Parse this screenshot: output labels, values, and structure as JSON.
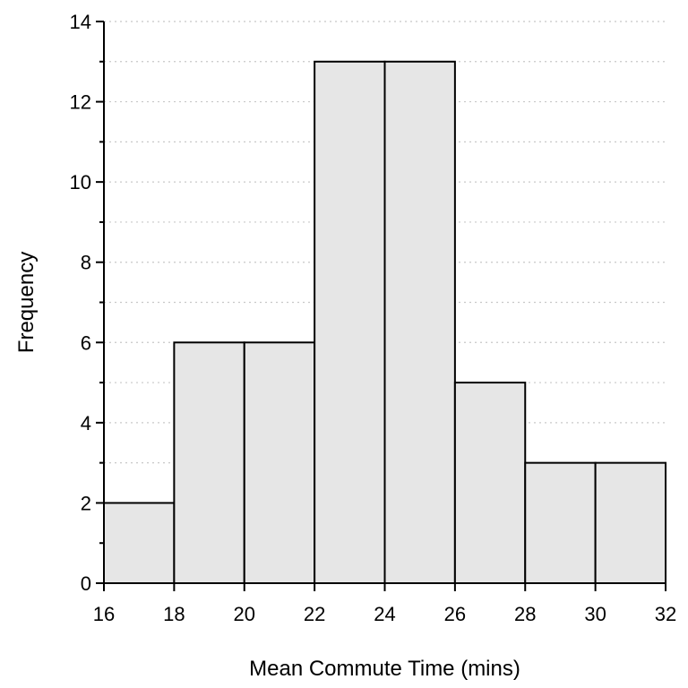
{
  "chart_data": {
    "type": "bar",
    "subtype": "histogram",
    "title": "",
    "xlabel": "Mean Commute Time (mins)",
    "ylabel": "Frequency",
    "bins": [
      {
        "start": 16,
        "end": 18,
        "count": 2
      },
      {
        "start": 18,
        "end": 20,
        "count": 6
      },
      {
        "start": 20,
        "end": 22,
        "count": 6
      },
      {
        "start": 22,
        "end": 24,
        "count": 13
      },
      {
        "start": 24,
        "end": 26,
        "count": 13
      },
      {
        "start": 26,
        "end": 28,
        "count": 5
      },
      {
        "start": 28,
        "end": 30,
        "count": 3
      },
      {
        "start": 30,
        "end": 32,
        "count": 3
      }
    ],
    "xlim": [
      16,
      32
    ],
    "ylim": [
      0,
      14
    ],
    "xticks": [
      16,
      18,
      20,
      22,
      24,
      26,
      28,
      30,
      32
    ],
    "yticks": [
      0,
      2,
      4,
      6,
      8,
      10,
      12,
      14
    ],
    "grid": "horizontal dotted",
    "bar_fill": "#e6e6e6",
    "bar_stroke": "#000000",
    "grid_color": "#c8c8c8"
  }
}
